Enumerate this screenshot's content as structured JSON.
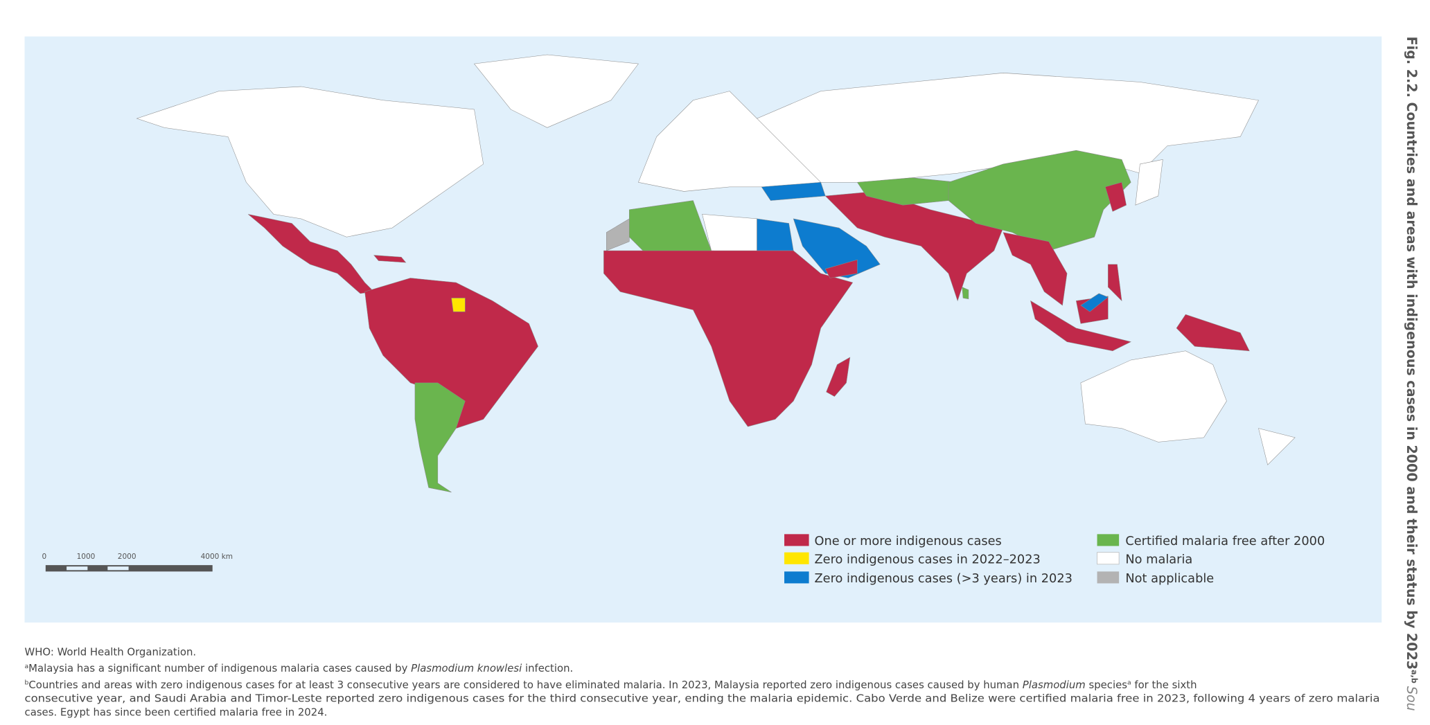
{
  "figure": {
    "title": "Fig. 2.2. Countries and areas with indigenous cases in 2000 and their status by 2023",
    "title_sup": "a,b",
    "title_cut": "Sou",
    "legend": [
      {
        "label": "One or more indigenous cases",
        "color": "#c0294a"
      },
      {
        "label": "Zero indigenous cases in 2022–2023",
        "color": "#ffe600"
      },
      {
        "label": "Zero indigenous cases (>3 years) in 2023",
        "color": "#0d7ccf"
      },
      {
        "label": "Certified malaria free after 2000",
        "color": "#6ab54e"
      },
      {
        "label": "No malaria",
        "color": "#ffffff"
      },
      {
        "label": "Not applicable",
        "color": "#b3b3b3"
      }
    ],
    "scale_bar": [
      "0",
      "1000",
      "2000",
      "4000 km"
    ],
    "footnotes": {
      "abbreviation": "WHO: World Health Organization.",
      "note_a": {
        "marker": "a",
        "text": "Malaysia has a significant number of indigenous malaria cases caused by ",
        "italic": "Plasmodium knowlesi",
        "end": " infection."
      },
      "note_b": {
        "marker": "b",
        "line1": "Countries and areas with zero indigenous cases for at least 3 consecutive years are considered to have eliminated malaria. In 2023, Malaysia reported zero indigenous cases caused by human ",
        "italic": "Plasmodium",
        "mid": " species",
        "sup": "a",
        "end1": " for the sixth",
        "line2": "consecutive year, and Saudi Arabia and Timor-Leste reported zero indigenous cases for the third consecutive year, ending the malaria epidemic. Cabo Verde and Belize were certified malaria free in 2023, following 4 years of zero malaria",
        "line3": "cases. Egypt has since been certified malaria free in 2024."
      }
    }
  }
}
